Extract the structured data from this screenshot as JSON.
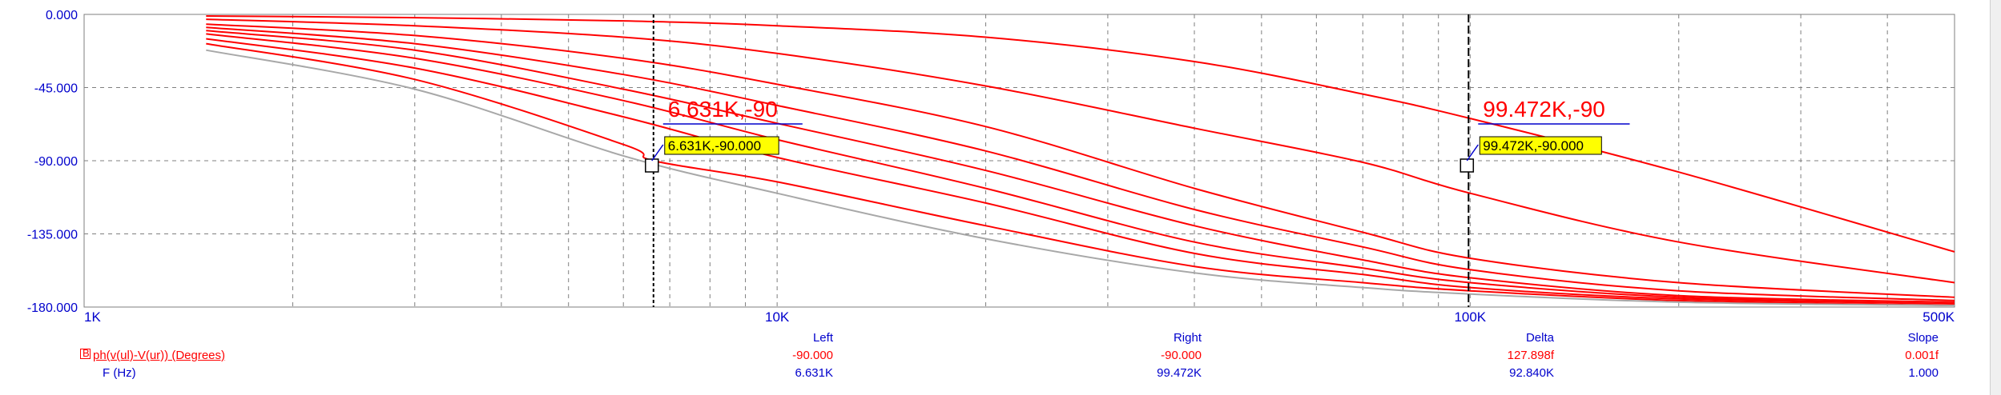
{
  "chart_data": {
    "type": "line",
    "x_scale": "log",
    "xlim": [
      1000,
      500000
    ],
    "ylim": [
      -180,
      0
    ],
    "grid": true,
    "x_ticks": [
      {
        "value": 1000,
        "label": "1K"
      },
      {
        "value": 10000,
        "label": "10K"
      },
      {
        "value": 100000,
        "label": "100K"
      },
      {
        "value": 500000,
        "label": "500K"
      }
    ],
    "y_ticks": [
      {
        "value": 0,
        "label": "0.000"
      },
      {
        "value": -45,
        "label": "-45.000"
      },
      {
        "value": -90,
        "label": "-90.000"
      },
      {
        "value": -135,
        "label": "-135.000"
      },
      {
        "value": -180,
        "label": "-180.000"
      }
    ],
    "series": [
      {
        "color": "#ff0000",
        "x": [
          1500,
          3000,
          6000,
          10000,
          20000,
          40000,
          70000,
          100000,
          200000,
          500000
        ],
        "y": [
          -1,
          -2,
          -4,
          -7,
          -14,
          -29,
          -49,
          -64,
          -97,
          -146
        ]
      },
      {
        "color": "#ff0000",
        "x": [
          1500,
          3000,
          6000,
          10000,
          20000,
          40000,
          70000,
          100000,
          200000,
          500000
        ],
        "y": [
          -3,
          -7,
          -14,
          -24,
          -44,
          -70,
          -91,
          -110,
          -140,
          -165
        ]
      },
      {
        "color": "#ff0000",
        "x": [
          1500,
          3000,
          6000,
          10000,
          20000,
          40000,
          70000,
          100000,
          200000,
          500000
        ],
        "y": [
          -6,
          -13,
          -27,
          -43,
          -69,
          -107,
          -134,
          -150,
          -165,
          -174
        ]
      },
      {
        "color": "#ff0000",
        "x": [
          1500,
          3000,
          6000,
          10000,
          20000,
          40000,
          70000,
          100000,
          200000,
          500000
        ],
        "y": [
          -8,
          -18,
          -37,
          -56,
          -84,
          -120,
          -143,
          -157,
          -170,
          -176
        ]
      },
      {
        "color": "#ff0000",
        "x": [
          1500,
          3000,
          6000,
          10000,
          20000,
          40000,
          70000,
          100000,
          200000,
          500000
        ],
        "y": [
          -10,
          -22,
          -46,
          -67,
          -96,
          -130,
          -151,
          -162,
          -173,
          -177
        ]
      },
      {
        "color": "#ff0000",
        "x": [
          1500,
          3000,
          6000,
          10000,
          20000,
          40000,
          70000,
          100000,
          200000,
          500000
        ],
        "y": [
          -12,
          -27,
          -53,
          -77,
          -107,
          -140,
          -156,
          -165,
          -174,
          -178
        ]
      },
      {
        "color": "#ff0000",
        "x": [
          1500,
          3000,
          6000,
          10000,
          20000,
          40000,
          70000,
          100000,
          200000,
          500000
        ],
        "y": [
          -15,
          -33,
          -63,
          -88,
          -116,
          -147,
          -160,
          -168,
          -175,
          -178
        ]
      },
      {
        "color": "#ff0000",
        "x": [
          1500,
          3000,
          6000,
          6631,
          10000,
          20000,
          40000,
          70000,
          100000,
          200000,
          500000
        ],
        "y": [
          -18,
          -40,
          -80,
          -90,
          -103,
          -130,
          -155,
          -165,
          -170,
          -176,
          -179
        ]
      },
      {
        "color": "#a8a8a8",
        "x": [
          1500,
          3000,
          6000,
          10000,
          20000,
          40000,
          70000,
          100000,
          200000,
          500000
        ],
        "y": [
          -22,
          -46,
          -87,
          -110,
          -138,
          -159,
          -168,
          -172,
          -177,
          -179
        ]
      }
    ],
    "cursors": [
      {
        "x": 6631,
        "y": -90,
        "label": "6.631K,-90",
        "tip": "6.631K,-90.000"
      },
      {
        "x": 99472,
        "y": -90,
        "label": "99.472K,-90",
        "tip": "99.472K,-90.000"
      }
    ]
  },
  "readout": {
    "trace_marker": "B",
    "trace_name": "ph(v(ul)-V(ur)) (Degrees)",
    "x_name": "F (Hz)",
    "headers": {
      "left": "Left",
      "right": "Right",
      "delta": "Delta",
      "slope": "Slope"
    },
    "trace_values": {
      "left": "-90.000",
      "right": "-90.000",
      "delta": "127.898f",
      "slope": "0.001f"
    },
    "x_values": {
      "left": "6.631K",
      "right": "99.472K",
      "delta": "92.840K",
      "slope": "1.000"
    }
  },
  "colors": {
    "axis_text": "#0000cc",
    "trace": "#ff0000",
    "grid": "#7f7f7f",
    "cursor_tip_bg": "#ffff00"
  }
}
